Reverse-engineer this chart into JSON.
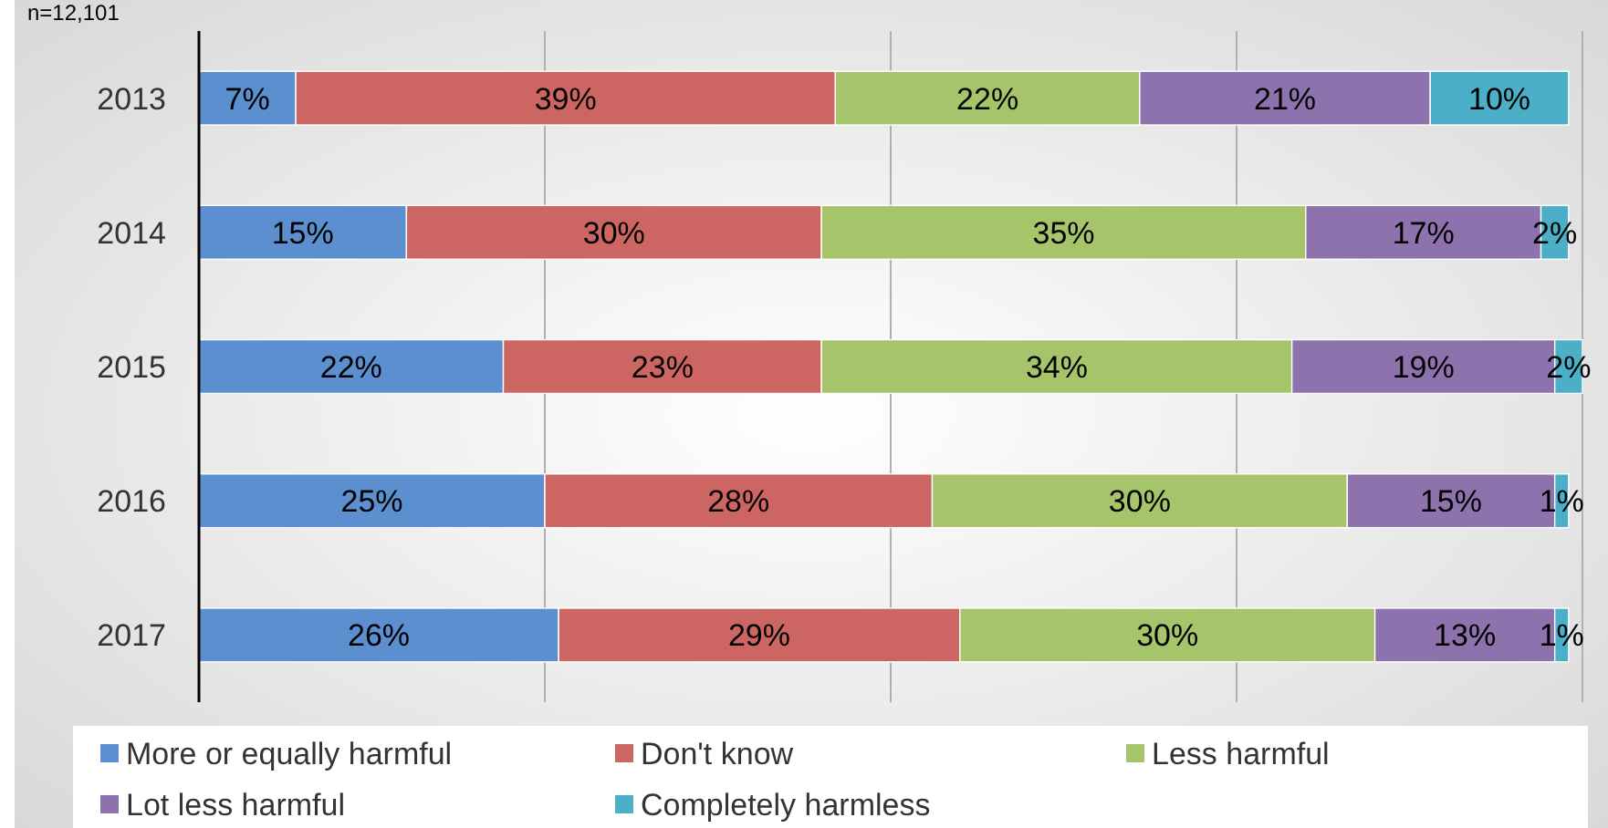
{
  "chart_data": {
    "type": "bar",
    "orientation": "horizontal",
    "stacked": true,
    "categories": [
      "2013",
      "2014",
      "2015",
      "2016",
      "2017"
    ],
    "series": [
      {
        "name": "More or equally harmful",
        "color": "#5b8fd0",
        "values": [
          7,
          15,
          22,
          25,
          26
        ],
        "value_labels": [
          "7%",
          "15%",
          "22%",
          "25%",
          "26%"
        ]
      },
      {
        "name": "Don't know",
        "color": "#cd6662",
        "values": [
          39,
          30,
          23,
          28,
          29
        ],
        "value_labels": [
          "39%",
          "30%",
          "23%",
          "28%",
          "29%"
        ]
      },
      {
        "name": "Less harmful",
        "color": "#a6c46a",
        "values": [
          22,
          35,
          34,
          30,
          30
        ],
        "value_labels": [
          "22%",
          "35%",
          "34%",
          "30%",
          "30%"
        ]
      },
      {
        "name": "Lot less harmful",
        "color": "#8e72ad",
        "values": [
          21,
          17,
          19,
          15,
          13
        ],
        "value_labels": [
          "21%",
          "17%",
          "19%",
          "15%",
          "13%"
        ]
      },
      {
        "name": "Completely harmless",
        "color": "#4bafc8",
        "values": [
          10,
          2,
          2,
          1,
          1
        ],
        "value_labels": [
          "10%",
          "2%",
          "2%",
          "1%",
          "1%"
        ]
      }
    ],
    "xlim": [
      0,
      100
    ],
    "xticks": [
      0,
      25,
      50,
      75,
      100
    ],
    "tick_labels": "y",
    "grid": "x",
    "legend": "bottom",
    "annotations": [
      "n=12,101"
    ]
  }
}
